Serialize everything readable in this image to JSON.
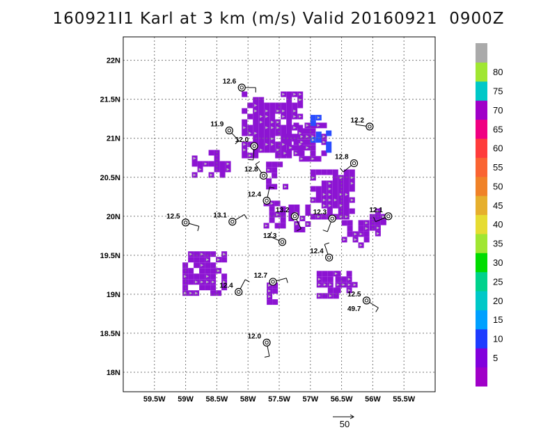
{
  "title": "160921I1 Karl at 3 km (m/s) Valid 20160921  0900Z",
  "colors": {
    "vector_arrow": "#bbbbbb",
    "barb": "#000000",
    "grid": "#777777"
  },
  "chart_data": {
    "type": "heatmap",
    "xlim": [
      -60.0,
      -55.0
    ],
    "ylim": [
      17.75,
      22.3
    ],
    "x_ticks": [
      {
        "value": -59.5,
        "label": "59.5W"
      },
      {
        "value": -59.0,
        "label": "59W"
      },
      {
        "value": -58.5,
        "label": "58.5W"
      },
      {
        "value": -58.0,
        "label": "58W"
      },
      {
        "value": -57.5,
        "label": "57.5W"
      },
      {
        "value": -57.0,
        "label": "57W"
      },
      {
        "value": -56.5,
        "label": "56.5W"
      },
      {
        "value": -56.0,
        "label": "56W"
      },
      {
        "value": -55.5,
        "label": "55.5W"
      }
    ],
    "y_ticks": [
      {
        "value": 18.0,
        "label": "18N"
      },
      {
        "value": 18.5,
        "label": "18.5N"
      },
      {
        "value": 19.0,
        "label": "19N"
      },
      {
        "value": 19.5,
        "label": "19.5N"
      },
      {
        "value": 20.0,
        "label": "20N"
      },
      {
        "value": 20.5,
        "label": "20.5N"
      },
      {
        "value": 21.0,
        "label": "21N"
      },
      {
        "value": 21.5,
        "label": "21.5N"
      },
      {
        "value": 22.0,
        "label": "22N"
      }
    ],
    "grid": true,
    "colorbar": {
      "levels": [
        "",
        "5",
        "10",
        "15",
        "20",
        "25",
        "30",
        "35",
        "40",
        "45",
        "50",
        "55",
        "60",
        "65",
        "70",
        "75",
        "80",
        ""
      ],
      "colors": [
        "#a000c8",
        "#8200dc",
        "#1e3cff",
        "#00a0ff",
        "#00c8c8",
        "#00d28c",
        "#00dc00",
        "#a0e632",
        "#e6dc32",
        "#e6af2d",
        "#f08228",
        "#fa6432",
        "#ff3c3c",
        "#f00082",
        "#a000c8",
        "#00c8c8",
        "#a0e632",
        "#aaaaaa"
      ]
    },
    "wind_regions": [
      {
        "lon": [
          -58.1,
          -57.2
        ],
        "lat": [
          20.75,
          21.6
        ],
        "color": "#8c14d2"
      },
      {
        "lon": [
          -57.45,
          -56.8
        ],
        "lat": [
          20.75,
          21.2
        ],
        "color": "#8c14d2"
      },
      {
        "lon": [
          -57.0,
          -56.3
        ],
        "lat": [
          20.0,
          20.6
        ],
        "color": "#8c14d2"
      },
      {
        "lon": [
          -58.9,
          -58.3
        ],
        "lat": [
          20.55,
          20.85
        ],
        "color": "#8c14d2"
      },
      {
        "lon": [
          -57.8,
          -57.4
        ],
        "lat": [
          20.3,
          20.7
        ],
        "color": "#8c14d2"
      },
      {
        "lon": [
          -57.75,
          -57.45
        ],
        "lat": [
          19.85,
          20.2
        ],
        "color": "#8c14d2"
      },
      {
        "lon": [
          -57.35,
          -57.05
        ],
        "lat": [
          19.85,
          20.15
        ],
        "color": "#8c14d2"
      },
      {
        "lon": [
          -56.5,
          -56.1
        ],
        "lat": [
          19.6,
          19.95
        ],
        "color": "#8c14d2"
      },
      {
        "lon": [
          -56.05,
          -55.8
        ],
        "lat": [
          19.75,
          20.1
        ],
        "color": "#8c14d2"
      },
      {
        "lon": [
          -59.05,
          -58.4
        ],
        "lat": [
          19.05,
          19.55
        ],
        "color": "#8c14d2"
      },
      {
        "lon": [
          -56.9,
          -56.55
        ],
        "lat": [
          19.0,
          19.3
        ],
        "color": "#8c14d2"
      },
      {
        "lon": [
          -56.6,
          -56.3
        ],
        "lat": [
          19.05,
          19.3
        ],
        "color": "#8c14d2"
      },
      {
        "lon": [
          -57.7,
          -57.55
        ],
        "lat": [
          18.9,
          19.15
        ],
        "color": "#8c14d2"
      },
      {
        "lon": [
          -57.0,
          -56.9
        ],
        "lat": [
          20.95,
          21.3
        ],
        "color": "#2a4cff"
      },
      {
        "lon": [
          -56.75,
          -56.7
        ],
        "lat": [
          20.85,
          21.1
        ],
        "color": "#2a4cff"
      }
    ],
    "observations": [
      {
        "lon": -58.1,
        "lat": 21.65,
        "label": "12.6"
      },
      {
        "lon": -58.3,
        "lat": 21.1,
        "label": "11.9"
      },
      {
        "lon": -57.9,
        "lat": 20.9,
        "label": "12.0"
      },
      {
        "lon": -56.3,
        "lat": 20.68,
        "label": "12.8"
      },
      {
        "lon": -56.05,
        "lat": 21.15,
        "label": "12.2"
      },
      {
        "lon": -57.75,
        "lat": 20.52,
        "label": "12.8"
      },
      {
        "lon": -57.7,
        "lat": 20.2,
        "label": "12.4"
      },
      {
        "lon": -58.25,
        "lat": 19.93,
        "label": "13.1"
      },
      {
        "lon": -59.0,
        "lat": 19.92,
        "label": "12.5"
      },
      {
        "lon": -57.25,
        "lat": 20.0,
        "label": "13.2"
      },
      {
        "lon": -56.65,
        "lat": 19.97,
        "label": "12.3"
      },
      {
        "lon": -55.75,
        "lat": 20.0,
        "label": "12.1"
      },
      {
        "lon": -57.45,
        "lat": 19.67,
        "label": "12.3"
      },
      {
        "lon": -56.7,
        "lat": 19.47,
        "label": "12.4"
      },
      {
        "lon": -58.15,
        "lat": 19.03,
        "label": "12.4"
      },
      {
        "lon": -57.6,
        "lat": 19.16,
        "label": "12.7"
      },
      {
        "lon": -56.1,
        "lat": 18.92,
        "label": "12.5"
      },
      {
        "lon": -57.7,
        "lat": 18.38,
        "label": "12.0"
      }
    ],
    "extra_labels": [
      {
        "lon": -56.1,
        "lat": 18.82,
        "label": "49.7"
      }
    ],
    "scale_vector": {
      "label": "50"
    }
  }
}
